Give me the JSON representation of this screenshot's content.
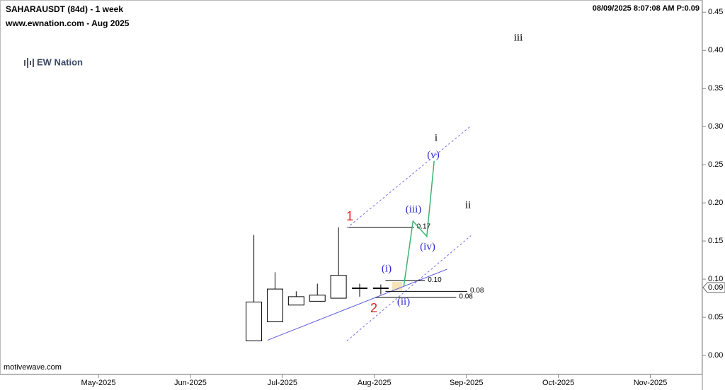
{
  "chart_data": {
    "type": "candlestick",
    "title": "SAHARAUSDT (84d) - 1 week",
    "subtitle": "www.ewnation.com  - Aug 2025",
    "timestamp": "08/09/2025 8:07:08 AM  P:0.09",
    "logo": "EW Nation",
    "footer": "motivewave.com",
    "xlim": [
      3.93,
      11.55
    ],
    "ylim": [
      -0.025,
      0.466
    ],
    "xticks": [
      {
        "value": 5,
        "label": "May-2025"
      },
      {
        "value": 6,
        "label": "Jun-2025"
      },
      {
        "value": 7,
        "label": "Jul-2025"
      },
      {
        "value": 8,
        "label": "Aug-2025"
      },
      {
        "value": 9,
        "label": "Sep-2025"
      },
      {
        "value": 10,
        "label": "Oct-2025"
      },
      {
        "value": 11,
        "label": "Nov-2025"
      }
    ],
    "yticks": [
      {
        "value": 0,
        "label": "0.00"
      },
      {
        "value": 0.05,
        "label": "0.05"
      },
      {
        "value": 0.1,
        "label": "0.10"
      },
      {
        "value": 0.15,
        "label": "0.15"
      },
      {
        "value": 0.2,
        "label": "0.20"
      },
      {
        "value": 0.25,
        "label": "0.25"
      },
      {
        "value": 0.3,
        "label": "0.30"
      },
      {
        "value": 0.35,
        "label": "0.35"
      },
      {
        "value": 0.4,
        "label": "0.40"
      },
      {
        "value": 0.45,
        "label": "0.45"
      }
    ],
    "last_price": {
      "value": 0.089,
      "label": "0.09"
    },
    "candles": {
      "x": [
        6.69,
        6.92,
        7.15,
        7.38,
        7.61,
        7.84,
        8.07
      ],
      "open": [
        0.019,
        0.044,
        0.066,
        0.071,
        0.075,
        0.088,
        0.088
      ],
      "high": [
        0.158,
        0.109,
        0.084,
        0.094,
        0.168,
        0.094,
        0.093
      ],
      "low": [
        0.019,
        0.044,
        0.066,
        0.071,
        0.075,
        0.077,
        0.08
      ],
      "close": [
        0.07,
        0.087,
        0.077,
        0.079,
        0.105,
        0.088,
        0.088
      ],
      "color": "#000000"
    },
    "wave": {
      "x": [
        8.32,
        8.42,
        8.57,
        8.65
      ],
      "values": [
        0.091,
        0.176,
        0.156,
        0.255
      ],
      "color": "#3cb371"
    },
    "trendlines": [
      {
        "x": [
          6.84,
          8.79
        ],
        "values": [
          0.02,
          0.113
        ],
        "color": "#5a5ae0",
        "dashed": false
      },
      {
        "x": [
          7.7,
          9.05
        ],
        "values": [
          0.019,
          0.157
        ],
        "color": "#7070f0",
        "dashed": true
      },
      {
        "x": [
          7.7,
          9.05
        ],
        "values": [
          0.167,
          0.301
        ],
        "color": "#7070f0",
        "dashed": true
      }
    ],
    "levels": [
      {
        "x": [
          7.72,
          8.43
        ],
        "value": 0.168,
        "label": "0.17"
      },
      {
        "x": [
          8.12,
          8.55
        ],
        "value": 0.098,
        "label": "0.10"
      },
      {
        "x": [
          8.12,
          9.01
        ],
        "value": 0.084,
        "label": "0.08"
      },
      {
        "x": [
          8.01,
          8.89
        ],
        "value": 0.076,
        "label": "0.08"
      }
    ],
    "annotations": [
      {
        "text": "iii",
        "color": "#000000"
      },
      {
        "text": "i",
        "color": "#000000"
      },
      {
        "text": "(v)",
        "color": "#2a2ad0"
      },
      {
        "text": "ii",
        "color": "#000000"
      },
      {
        "text": "1",
        "color": "#e02020"
      },
      {
        "text": "(iii)",
        "color": "#2a2ad0"
      },
      {
        "text": "(iv)",
        "color": "#2a2ad0"
      },
      {
        "text": "(i)",
        "color": "#2a2ad0"
      },
      {
        "text": "2",
        "color": "#e02020"
      },
      {
        "text": "(ii)",
        "color": "#2a2ad0"
      }
    ]
  }
}
